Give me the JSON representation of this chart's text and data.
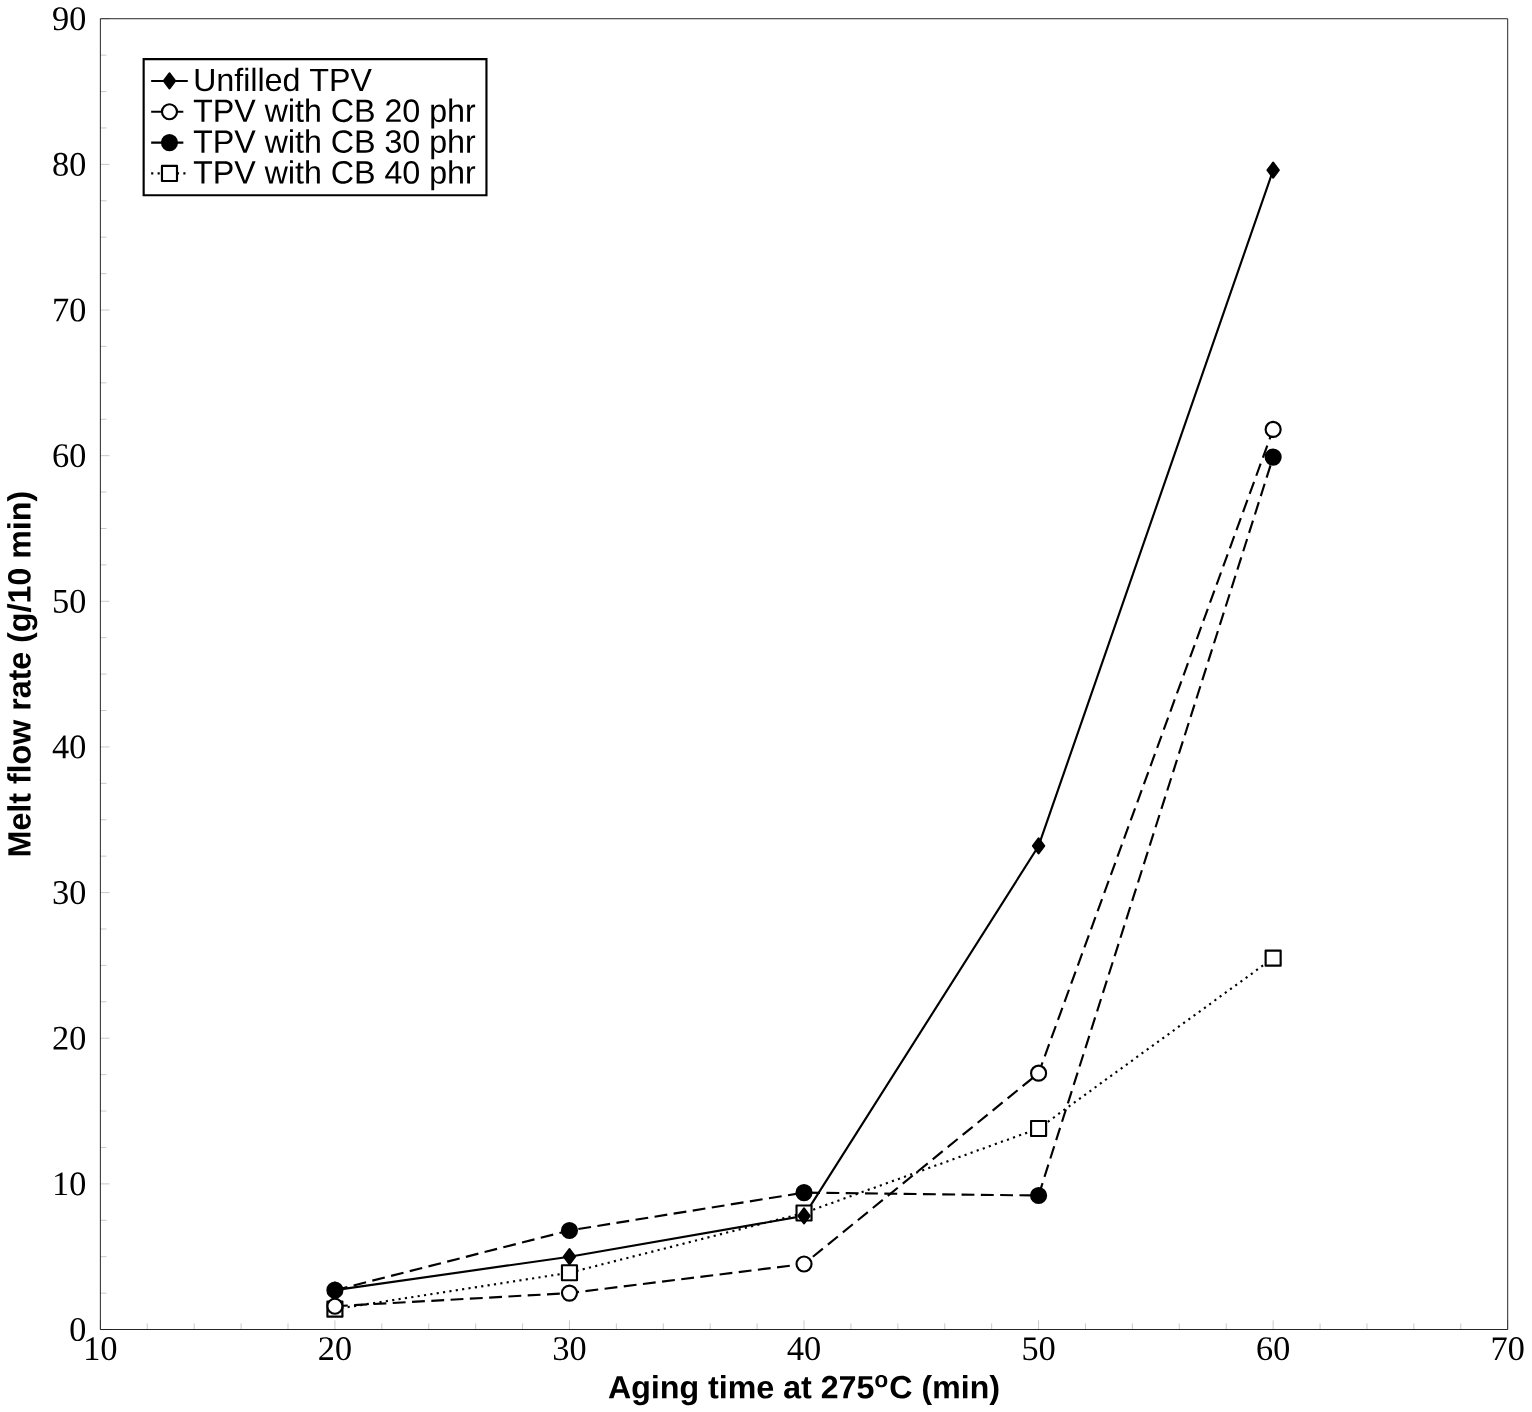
{
  "chart_data": {
    "type": "line",
    "xlabel": "Aging time at 275$^{o}$C (min)",
    "ylabel": "Melt flow rate (g/10 min)",
    "x": [
      20,
      30,
      40,
      50,
      60
    ],
    "series": [
      {
        "name": "Unfilled TPV",
        "color": "#000000",
        "marker": "diamond",
        "line_style": "solid",
        "values": [
          2.7,
          5.0,
          7.8,
          33.2,
          79.6
        ]
      },
      {
        "name": "TPV with CB 20 phr",
        "color": "#000000",
        "marker": "circle",
        "line_style": "dashed",
        "values": [
          1.6,
          2.5,
          4.5,
          17.6,
          61.8
        ]
      },
      {
        "name": "TPV with CB 30 phr",
        "color": "#000000",
        "marker": "circle",
        "line_style": "dashed",
        "values": [
          2.7,
          6.8,
          9.4,
          9.2,
          59.9
        ]
      },
      {
        "name": "TPV with CB 40 phr",
        "color": "#000000",
        "marker": "square",
        "line_style": "dotted",
        "values": [
          1.4,
          3.9,
          8.0,
          13.8,
          25.5
        ]
      }
    ],
    "xlim": [
      10,
      70
    ],
    "xticks": [
      10,
      20,
      30,
      40,
      50,
      60,
      70
    ],
    "ylim": [
      0,
      90
    ],
    "yticks": [
      0,
      10,
      20,
      30,
      40,
      50,
      60,
      70,
      80,
      90
    ],
    "grid": false,
    "legend": "top left"
  }
}
